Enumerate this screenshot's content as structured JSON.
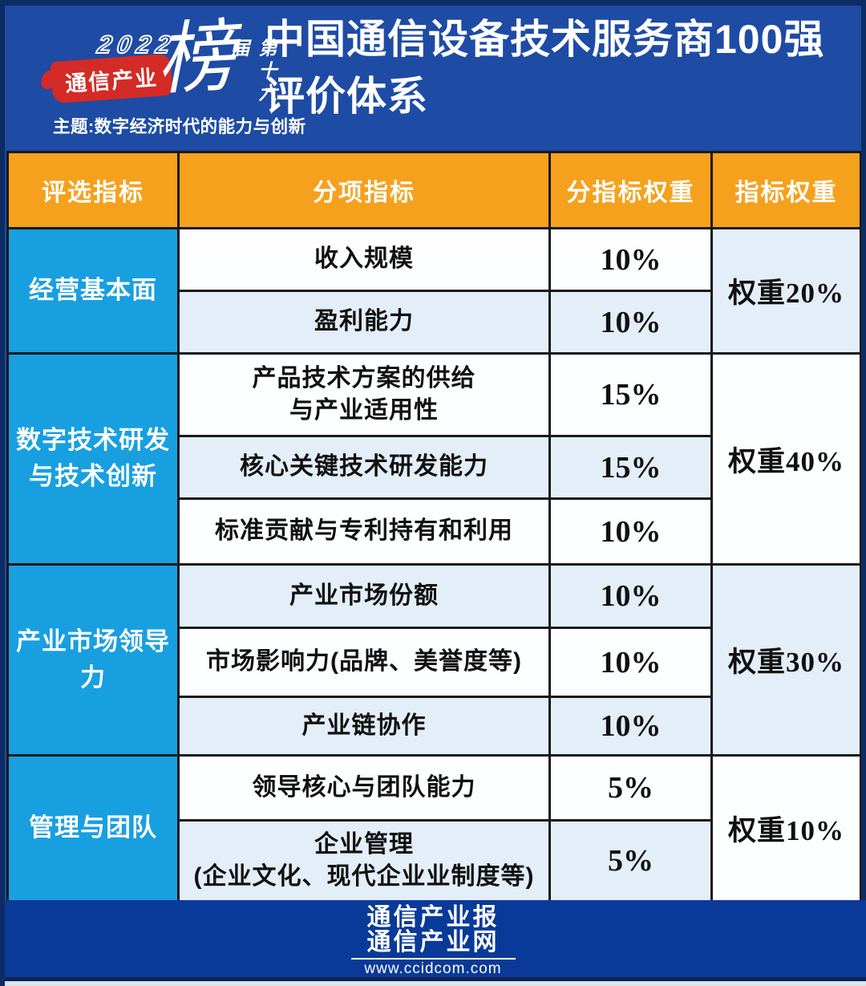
{
  "logo": {
    "year": "2022",
    "brand": "通信产业",
    "big_char": "榜",
    "edition": "第十六届",
    "theme": "主题:数字经济时代的能力与创新"
  },
  "title": {
    "line1": "中国通信设备技术服务商100强",
    "line2": "评价体系"
  },
  "chart_data": {
    "type": "table",
    "title": "中国通信设备技术服务商100强评价体系",
    "headers": [
      "评选指标",
      "分项指标",
      "分指标权重",
      "指标权重"
    ],
    "groups": [
      {
        "category": "经营基本面",
        "group_weight": "权重20%",
        "group_weight_value": 20,
        "rows": [
          {
            "indicator": "收入规模",
            "weight": "10%",
            "weight_value": 10
          },
          {
            "indicator": "盈利能力",
            "weight": "10%",
            "weight_value": 10
          }
        ]
      },
      {
        "category": "数字技术研发与技术创新",
        "group_weight": "权重40%",
        "group_weight_value": 40,
        "rows": [
          {
            "indicator": "产品技术方案的供给\n与产业适用性",
            "weight": "15%",
            "weight_value": 15
          },
          {
            "indicator": "核心关键技术研发能力",
            "weight": "15%",
            "weight_value": 15
          },
          {
            "indicator": "标准贡献与专利持有和利用",
            "weight": "10%",
            "weight_value": 10
          }
        ]
      },
      {
        "category": "产业市场领导力",
        "group_weight": "权重30%",
        "group_weight_value": 30,
        "rows": [
          {
            "indicator": "产业市场份额",
            "weight": "10%",
            "weight_value": 10
          },
          {
            "indicator": "市场影响力(品牌、美誉度等)",
            "weight": "10%",
            "weight_value": 10
          },
          {
            "indicator": "产业链协作",
            "weight": "10%",
            "weight_value": 10
          }
        ]
      },
      {
        "category": "管理与团队",
        "group_weight": "权重10%",
        "group_weight_value": 10,
        "rows": [
          {
            "indicator": "领导核心与团队能力",
            "weight": "5%",
            "weight_value": 5
          },
          {
            "indicator": "企业管理\n(企业文化、现代企业业制度等)",
            "weight": "5%",
            "weight_value": 5
          }
        ]
      }
    ]
  },
  "footer": {
    "line1": "通信产业报",
    "line2": "通信产业网",
    "url": "www.ccidcom.com"
  },
  "colors": {
    "background_blue": "#1e4ba4",
    "header_orange": "#f5a11d",
    "category_blue": "#189fe0",
    "row_light": "#e3eef9",
    "row_white": "#fdfeff",
    "footer_blue": "#0a3a99",
    "brush_red": "#d42b26",
    "border_dark": "#1a1a1a"
  }
}
